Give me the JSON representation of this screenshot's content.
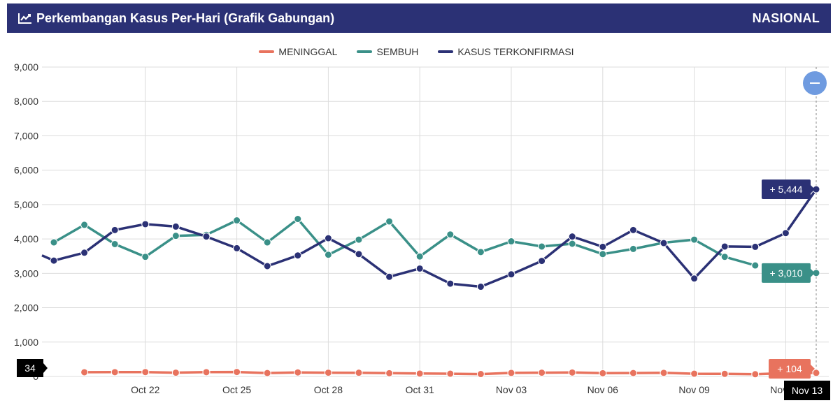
{
  "header": {
    "title": "Perkembangan Kasus Per-Hari (Grafik Gabungan)",
    "region": "NASIONAL",
    "icon": "line-chart-icon"
  },
  "zoom_button": {
    "icon": "minus-icon"
  },
  "chart_data": {
    "type": "line",
    "title": "Perkembangan Kasus Per-Hari (Grafik Gabungan)",
    "ylim": [
      0,
      9000
    ],
    "yticks": [
      "0",
      "1,000",
      "2,000",
      "3,000",
      "4,000",
      "5,000",
      "6,000",
      "7,000",
      "8,000",
      "9,000"
    ],
    "x": [
      "Oct 19",
      "Oct 20",
      "Oct 21",
      "Oct 22",
      "Oct 23",
      "Oct 24",
      "Oct 25",
      "Oct 26",
      "Oct 27",
      "Oct 28",
      "Oct 29",
      "Oct 30",
      "Oct 31",
      "Nov 01",
      "Nov 02",
      "Nov 03",
      "Nov 04",
      "Nov 05",
      "Nov 06",
      "Nov 07",
      "Nov 08",
      "Nov 09",
      "Nov 10",
      "Nov 11",
      "Nov 12",
      "Nov 13"
    ],
    "xtick_labels": [
      "Oct 22",
      "Oct 25",
      "Oct 28",
      "Oct 31",
      "Nov 03",
      "Nov 06",
      "Nov 09",
      "Nov 12"
    ],
    "grid": true,
    "legend_position": "top-center",
    "series": [
      {
        "name": "MENINGGAL",
        "color": "#e8735e",
        "values": [
          null,
          123,
          125,
          128,
          110,
          125,
          130,
          100,
          118,
          110,
          108,
          95,
          85,
          80,
          70,
          104,
          110,
          115,
          95,
          100,
          105,
          80,
          75,
          65,
          95,
          104
        ]
      },
      {
        "name": "SEMBUH",
        "color": "#3a9088",
        "values": [
          3900,
          4410,
          3850,
          3480,
          4090,
          4120,
          4540,
          3900,
          4580,
          3540,
          3980,
          4510,
          3490,
          4130,
          3620,
          3930,
          3780,
          3860,
          3560,
          3710,
          3890,
          3980,
          3480,
          3230,
          null,
          3010
        ]
      },
      {
        "name": "KASUS TERKONFIRMASI",
        "color": "#2b3175",
        "values": [
          3370,
          3600,
          4260,
          4430,
          4360,
          4070,
          3730,
          3210,
          3520,
          4020,
          3560,
          2900,
          3140,
          2700,
          2610,
          2970,
          3360,
          4070,
          3770,
          4260,
          3880,
          2850,
          3780,
          3770,
          4170,
          5444
        ]
      }
    ],
    "tooltips": {
      "date": "Nov 13",
      "confirmed": "+ 5,444",
      "recovered": "+ 3,010",
      "deaths": "+ 104",
      "crosshair_y_value": "34"
    }
  }
}
